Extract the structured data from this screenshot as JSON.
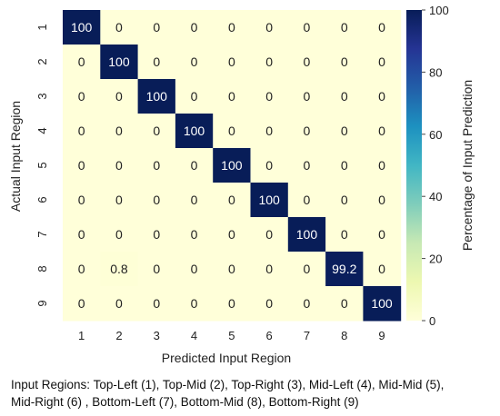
{
  "chart_data": {
    "type": "heatmap",
    "x_categories": [
      "1",
      "2",
      "3",
      "4",
      "5",
      "6",
      "7",
      "8",
      "9"
    ],
    "y_categories": [
      "1",
      "2",
      "3",
      "4",
      "5",
      "6",
      "7",
      "8",
      "9"
    ],
    "values": [
      [
        100,
        0,
        0,
        0,
        0,
        0,
        0,
        0,
        0
      ],
      [
        0,
        100,
        0,
        0,
        0,
        0,
        0,
        0,
        0
      ],
      [
        0,
        0,
        100,
        0,
        0,
        0,
        0,
        0,
        0
      ],
      [
        0,
        0,
        0,
        100,
        0,
        0,
        0,
        0,
        0
      ],
      [
        0,
        0,
        0,
        0,
        100,
        0,
        0,
        0,
        0
      ],
      [
        0,
        0,
        0,
        0,
        0,
        100,
        0,
        0,
        0
      ],
      [
        0,
        0,
        0,
        0,
        0,
        0,
        100,
        0,
        0
      ],
      [
        0,
        0.8,
        0,
        0,
        0,
        0,
        0,
        99.2,
        0
      ],
      [
        0,
        0,
        0,
        0,
        0,
        0,
        0,
        0,
        100
      ]
    ],
    "value_labels": [
      [
        "100",
        "0",
        "0",
        "0",
        "0",
        "0",
        "0",
        "0",
        "0"
      ],
      [
        "0",
        "100",
        "0",
        "0",
        "0",
        "0",
        "0",
        "0",
        "0"
      ],
      [
        "0",
        "0",
        "100",
        "0",
        "0",
        "0",
        "0",
        "0",
        "0"
      ],
      [
        "0",
        "0",
        "0",
        "100",
        "0",
        "0",
        "0",
        "0",
        "0"
      ],
      [
        "0",
        "0",
        "0",
        "0",
        "100",
        "0",
        "0",
        "0",
        "0"
      ],
      [
        "0",
        "0",
        "0",
        "0",
        "0",
        "100",
        "0",
        "0",
        "0"
      ],
      [
        "0",
        "0",
        "0",
        "0",
        "0",
        "0",
        "100",
        "0",
        "0"
      ],
      [
        "0",
        "0.8",
        "0",
        "0",
        "0",
        "0",
        "0",
        "99.2",
        "0"
      ],
      [
        "0",
        "0",
        "0",
        "0",
        "0",
        "0",
        "0",
        "0",
        "100"
      ]
    ],
    "xlabel": "Predicted Input Region",
    "ylabel": "Actual Input Region",
    "colorbar": {
      "label": "Percentage of Input Prediction",
      "range": [
        0,
        100
      ],
      "ticks": [
        "0",
        "20",
        "40",
        "60",
        "80",
        "100"
      ],
      "colormap": "YlGnBu",
      "stops": [
        "#ffffd9",
        "#edf8b1",
        "#c7e9b4",
        "#7fcdbb",
        "#41b6c4",
        "#1d91c0",
        "#225ea8",
        "#253494",
        "#081d58"
      ]
    },
    "grid": false
  },
  "caption": {
    "line1": "Input Regions: Top-Left (1), Top-Mid (2), Top-Right (3), Mid-Left (4), Mid-Mid (5),",
    "line2": "Mid-Right (6) , Bottom-Left (7), Bottom-Mid (8), Bottom-Right (9)"
  }
}
